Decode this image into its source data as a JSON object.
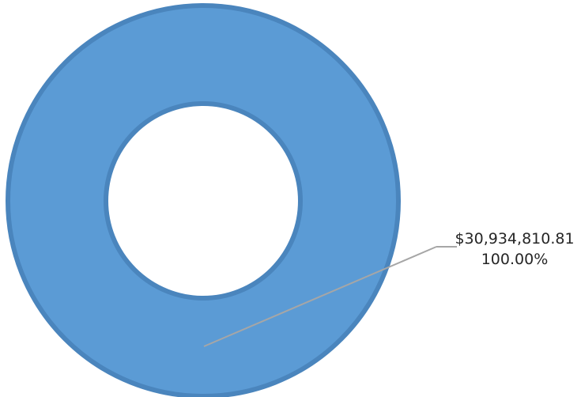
{
  "chart_data": {
    "type": "pie",
    "variant": "donut",
    "categories": [
      ""
    ],
    "values": [
      30934810.81
    ],
    "slices": [
      {
        "value": 30934810.81,
        "value_label": "$30,934,810.81",
        "percent": 100.0,
        "percent_label": "100.00%",
        "color": "#5b9bd5",
        "edge_color": "#4a85bd"
      }
    ],
    "title": "",
    "legend": "none"
  },
  "colors": {
    "background": "#ffffff",
    "slice": "#5b9bd5",
    "slice_edge": "#4a85bd",
    "leader_line": "#a6a6a6",
    "label_text": "#262626",
    "watermark": "#ebebeb"
  }
}
